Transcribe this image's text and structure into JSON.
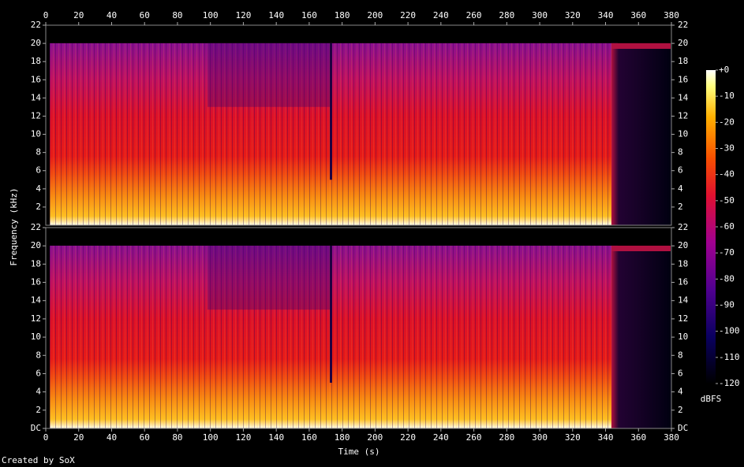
{
  "chart_data": [
    {
      "type": "spectrogram",
      "ylabel": "Frequency (kHz)",
      "xlim": [
        0,
        380
      ],
      "xticks": [
        0,
        20,
        40,
        60,
        80,
        100,
        120,
        140,
        160,
        180,
        200,
        220,
        240,
        260,
        280,
        300,
        320,
        340,
        360,
        380
      ],
      "ylim": [
        0,
        22
      ],
      "yticks": [
        2,
        4,
        6,
        8,
        10,
        12,
        14,
        16,
        18,
        20,
        22
      ]
    },
    {
      "type": "spectrogram",
      "xlabel": "Time (s)",
      "xlim": [
        0,
        380
      ],
      "xticks": [
        0,
        20,
        40,
        60,
        80,
        100,
        120,
        140,
        160,
        180,
        200,
        220,
        240,
        260,
        280,
        300,
        320,
        340,
        360,
        380
      ],
      "ylim": [
        0,
        22
      ],
      "yticks": [
        {
          "value": 0,
          "label": "DC"
        },
        2,
        4,
        6,
        8,
        10,
        12,
        14,
        16,
        18,
        20,
        22
      ]
    }
  ],
  "colorbar": {
    "label": "dBFS",
    "lim": [
      -120,
      0
    ],
    "ticks": [
      {
        "value": 0,
        "label": "+0"
      },
      -10,
      -20,
      -30,
      -40,
      -50,
      -60,
      -70,
      -80,
      -90,
      -100,
      -110,
      -120
    ]
  },
  "footer": "Created by SoX"
}
